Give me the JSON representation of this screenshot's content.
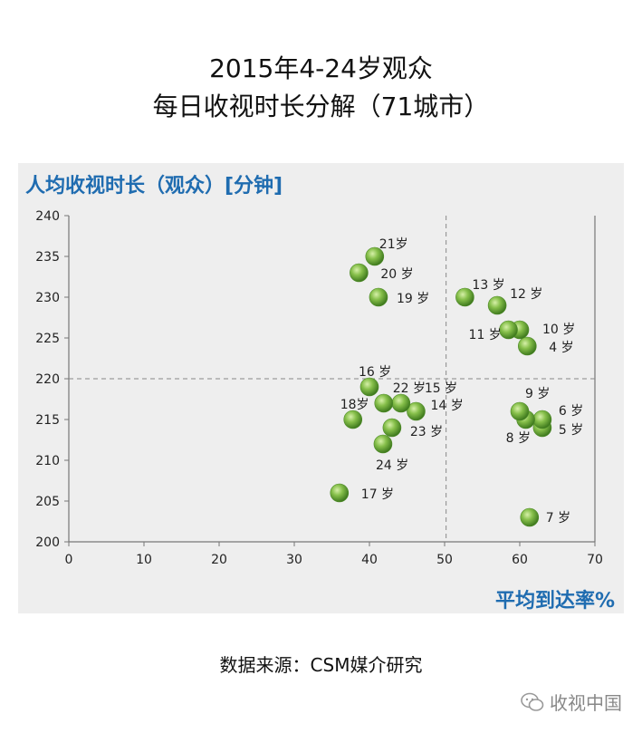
{
  "title_line1": "2015年4-24岁观众",
  "title_line2": "每日收视时长分解（71城市）",
  "source": "数据来源：CSM媒介研究",
  "watermark": "收视中国",
  "watermark_icon": "wechat-icon",
  "colors": {
    "bubble": "#6fa83a",
    "axis_label": "#1f6cb0"
  },
  "chart_data": {
    "type": "scatter",
    "ylabel": "人均收视时长（观众）[分钟]",
    "xlabel": "平均到达率%",
    "xlim": [
      0,
      70
    ],
    "ylim": [
      200,
      240
    ],
    "xticks": [
      0,
      10,
      20,
      30,
      40,
      50,
      60,
      70
    ],
    "yticks": [
      200,
      205,
      210,
      215,
      220,
      225,
      230,
      235,
      240
    ],
    "ref_x": 50.2,
    "ref_y": 220,
    "points": [
      {
        "label": "4 岁",
        "x": 61.0,
        "y": 224
      },
      {
        "label": "5 岁",
        "x": 63.0,
        "y": 214
      },
      {
        "label": "6 岁",
        "x": 63.0,
        "y": 215
      },
      {
        "label": "7 岁",
        "x": 61.3,
        "y": 203
      },
      {
        "label": "8 岁",
        "x": 60.8,
        "y": 215
      },
      {
        "label": "9 岁",
        "x": 60.0,
        "y": 216
      },
      {
        "label": "10 岁",
        "x": 60.0,
        "y": 226
      },
      {
        "label": "11 岁",
        "x": 58.5,
        "y": 226
      },
      {
        "label": "12 岁",
        "x": 57.0,
        "y": 229
      },
      {
        "label": "13 岁",
        "x": 52.7,
        "y": 230
      },
      {
        "label": "14 岁",
        "x": 46.2,
        "y": 216
      },
      {
        "label": "15 岁",
        "x": 44.2,
        "y": 217
      },
      {
        "label": "16 岁",
        "x": 40.0,
        "y": 219
      },
      {
        "label": "17 岁",
        "x": 36.0,
        "y": 206
      },
      {
        "label": "18岁",
        "x": 37.8,
        "y": 215
      },
      {
        "label": "19 岁",
        "x": 41.2,
        "y": 230
      },
      {
        "label": "20 岁",
        "x": 38.6,
        "y": 233
      },
      {
        "label": "21岁",
        "x": 40.7,
        "y": 235
      },
      {
        "label": "22 岁",
        "x": 41.9,
        "y": 217
      },
      {
        "label": "23 岁",
        "x": 43.0,
        "y": 214
      },
      {
        "label": "24 岁",
        "x": 41.8,
        "y": 212
      }
    ]
  }
}
